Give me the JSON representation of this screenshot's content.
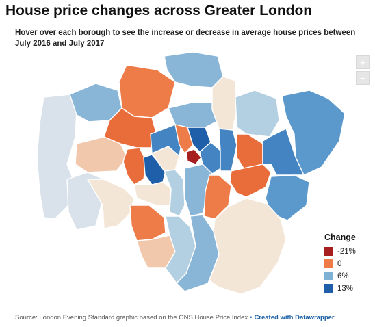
{
  "title": "House price changes across Greater London",
  "subtitle": "Hover over each borough to see the increase or decrease in average house prices between July 2016 and July 2017",
  "controls": {
    "zoom_in": "+",
    "zoom_out": "−"
  },
  "legend": {
    "title": "Change",
    "items": [
      {
        "label": "-21%",
        "color": "#a71e1e"
      },
      {
        "label": "0",
        "color": "#ee7c48"
      },
      {
        "label": "6%",
        "color": "#7fb1d4"
      },
      {
        "label": "13%",
        "color": "#1f5fa9"
      }
    ]
  },
  "colors": {
    "light_blue_grey": "#d9e2ea",
    "light_blue": "#b3cfe2",
    "mid_blue": "#89b5d6",
    "blue": "#5b98cc",
    "deep_blue": "#4484c2",
    "dark_blue": "#1f5fa9",
    "cream": "#f4e6d6",
    "peach": "#f2c8ad",
    "salmon": "#ee7c48",
    "orange": "#e96d3b",
    "dark_red": "#a71e1e"
  },
  "footer": {
    "source": "Source: London Evening Standard graphic based on the ONS House Price Index",
    "separator": "•",
    "credit": "Created with Datawrapper"
  }
}
